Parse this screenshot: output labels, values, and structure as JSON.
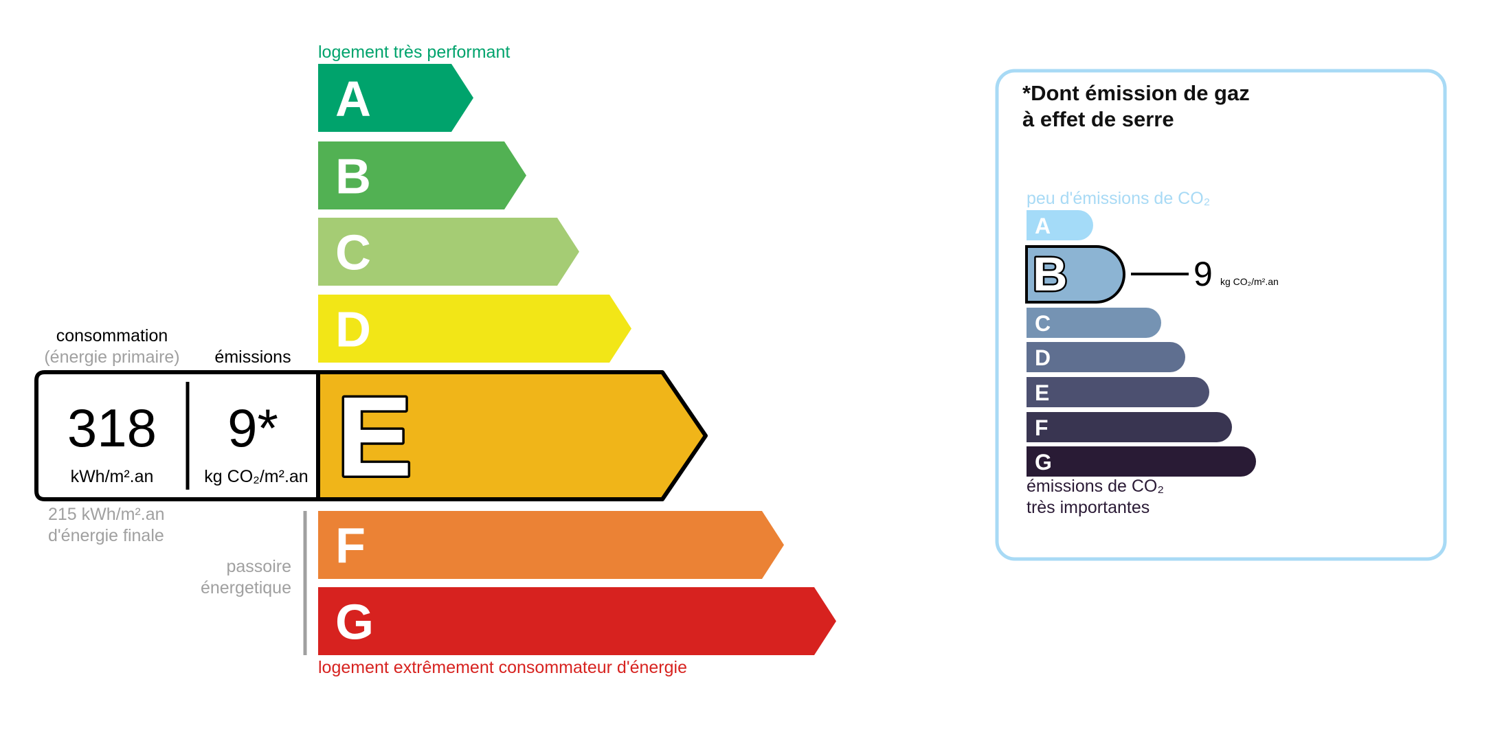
{
  "energy": {
    "top_label": "logement très performant",
    "bottom_label": "logement extrêmement consommateur d'énergie",
    "top_color": "#00a36c",
    "bottom_color": "#d7221f",
    "current_rating": "E",
    "ratings": [
      {
        "letter": "A",
        "color": "#00a36c"
      },
      {
        "letter": "B",
        "color": "#52b153"
      },
      {
        "letter": "C",
        "color": "#a5cc74"
      },
      {
        "letter": "D",
        "color": "#f2e617"
      },
      {
        "letter": "E",
        "color": "#f0b519"
      },
      {
        "letter": "F",
        "color": "#eb8235"
      },
      {
        "letter": "G",
        "color": "#d7221f"
      }
    ],
    "consumption_label": "consommation",
    "consumption_sublabel": "(énergie primaire)",
    "emissions_label": "émissions",
    "consumption_value": "318",
    "consumption_unit": "kWh/m².an",
    "emissions_value": "9*",
    "emissions_unit": "kg CO₂/m².an",
    "final_energy_line1": "215 kWh/m².an",
    "final_energy_line2": "d'énergie finale",
    "passoire_line1": "passoire",
    "passoire_line2": "énergetique"
  },
  "ghg": {
    "title_line1": "*Dont émission de gaz",
    "title_line2": "à effet de serre",
    "top_label": "peu d'émissions de CO₂",
    "bottom_line1": "émissions de CO₂",
    "bottom_line2": "très importantes",
    "current_rating": "B",
    "value": "9",
    "unit": "kg CO₂/m².an",
    "border_color": "#a8daf5",
    "ratings": [
      {
        "letter": "A",
        "color": "#a4dbf8"
      },
      {
        "letter": "B",
        "color": "#8cb4d3"
      },
      {
        "letter": "C",
        "color": "#7593b3"
      },
      {
        "letter": "D",
        "color": "#5f6f90"
      },
      {
        "letter": "E",
        "color": "#4c5070"
      },
      {
        "letter": "F",
        "color": "#393551"
      },
      {
        "letter": "G",
        "color": "#291b35"
      }
    ]
  }
}
